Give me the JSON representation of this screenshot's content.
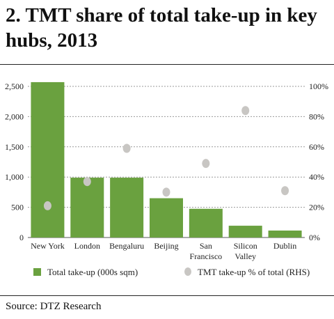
{
  "title": "2. TMT share of total take-up in key hubs, 2013",
  "source": "Source: DTZ Research",
  "chart_data": {
    "type": "bar",
    "categories": [
      [
        "New York"
      ],
      [
        "London"
      ],
      [
        "Bengaluru"
      ],
      [
        "Beijing"
      ],
      [
        "San",
        "Francisco"
      ],
      [
        "Silicon",
        "Valley"
      ],
      [
        "Dublin"
      ]
    ],
    "series": [
      {
        "name": "Total take-up (000s sqm)",
        "axis": "left",
        "type": "bar",
        "values": [
          2570,
          990,
          990,
          650,
          475,
          195,
          115
        ],
        "color": "#6aa13f"
      },
      {
        "name": "TMT take-up % of total (RHS)",
        "axis": "right",
        "type": "scatter",
        "values": [
          21,
          37,
          59,
          30,
          49,
          84,
          31
        ],
        "color": "#c8c6c3"
      }
    ],
    "yleft": {
      "ticks": [
        "0",
        "500",
        "1,000",
        "1,500",
        "2,000",
        "2,500"
      ],
      "values": [
        0,
        500,
        1000,
        1500,
        2000,
        2500
      ],
      "ylim": [
        0,
        2500
      ]
    },
    "yright": {
      "ticks": [
        "0%",
        "20%",
        "40%",
        "60%",
        "80%",
        "100%"
      ],
      "values": [
        0,
        20,
        40,
        60,
        80,
        100
      ],
      "ylim": [
        0,
        100
      ]
    },
    "grid": true,
    "legend": "bottom"
  }
}
